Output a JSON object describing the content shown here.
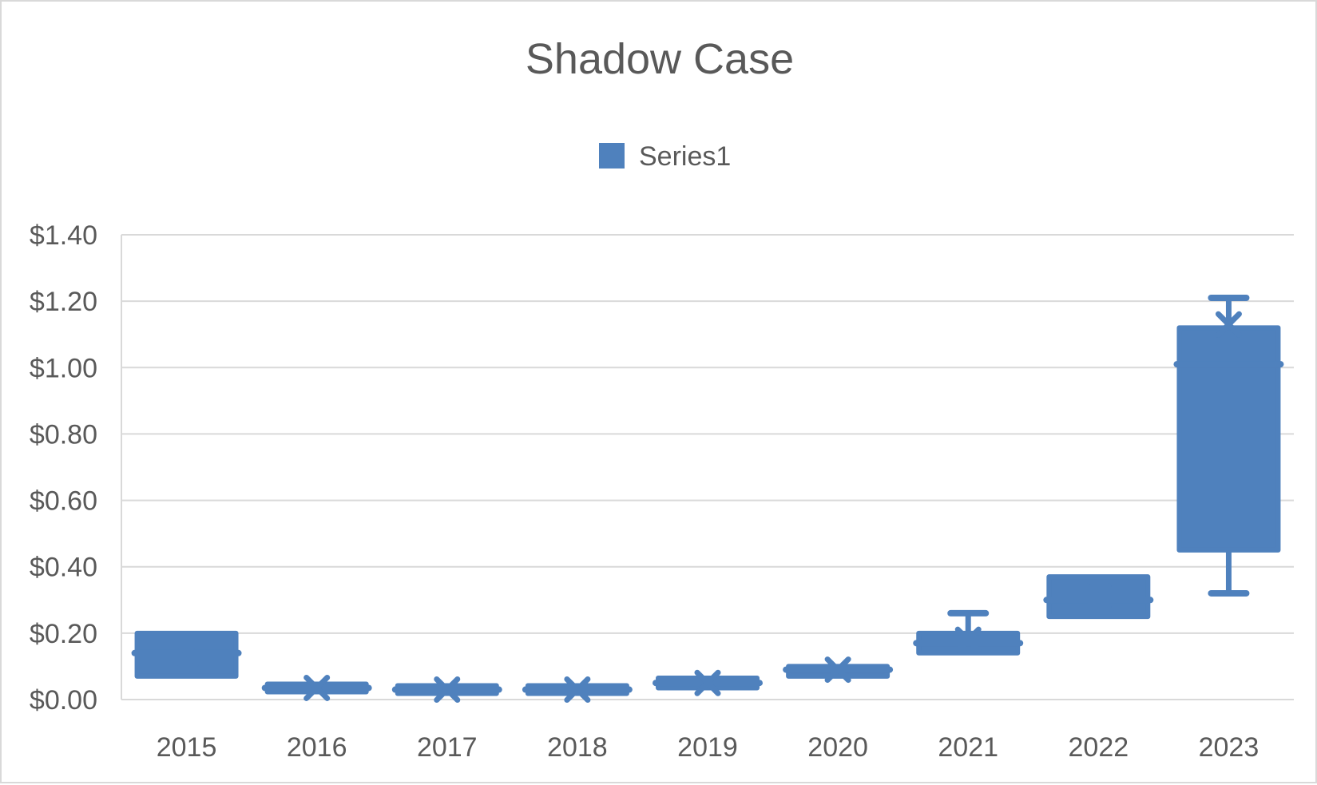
{
  "chart_data": {
    "type": "box",
    "title": "Shadow Case",
    "legend": {
      "entries": [
        "Series1"
      ],
      "position": "top"
    },
    "y_axis": {
      "min": 0,
      "max": 1.4,
      "step": 0.2,
      "tick_labels": [
        "$0.00",
        "$0.20",
        "$0.40",
        "$0.60",
        "$0.80",
        "$1.00",
        "$1.20",
        "$1.40"
      ]
    },
    "grid": true,
    "categories": [
      "2015",
      "2016",
      "2017",
      "2018",
      "2019",
      "2020",
      "2021",
      "2022",
      "2023"
    ],
    "series": [
      {
        "name": "Series1",
        "color": "#4f81bd",
        "boxes": [
          {
            "min": 0.07,
            "q1": 0.07,
            "median": 0.14,
            "q3": 0.2,
            "max": 0.2,
            "mean": 0.14
          },
          {
            "min": 0.03,
            "q1": 0.03,
            "median": 0.035,
            "q3": 0.04,
            "max": 0.04,
            "mean": 0.035
          },
          {
            "min": 0.03,
            "q1": 0.03,
            "median": 0.03,
            "q3": 0.03,
            "max": 0.03,
            "mean": 0.03
          },
          {
            "min": 0.03,
            "q1": 0.03,
            "median": 0.03,
            "q3": 0.03,
            "max": 0.03,
            "mean": 0.03
          },
          {
            "min": 0.035,
            "q1": 0.035,
            "median": 0.05,
            "q3": 0.065,
            "max": 0.065,
            "mean": 0.05
          },
          {
            "min": 0.07,
            "q1": 0.07,
            "median": 0.09,
            "q3": 0.1,
            "max": 0.1,
            "mean": 0.09
          },
          {
            "min": 0.14,
            "q1": 0.14,
            "median": 0.17,
            "q3": 0.2,
            "max": 0.26,
            "mean": 0.18
          },
          {
            "min": 0.25,
            "q1": 0.25,
            "median": 0.3,
            "q3": 0.37,
            "max": 0.37,
            "mean": 0.31
          },
          {
            "min": 0.32,
            "q1": 0.45,
            "median": 1.01,
            "q3": 1.12,
            "max": 1.21,
            "mean": 1.13
          }
        ]
      }
    ]
  }
}
